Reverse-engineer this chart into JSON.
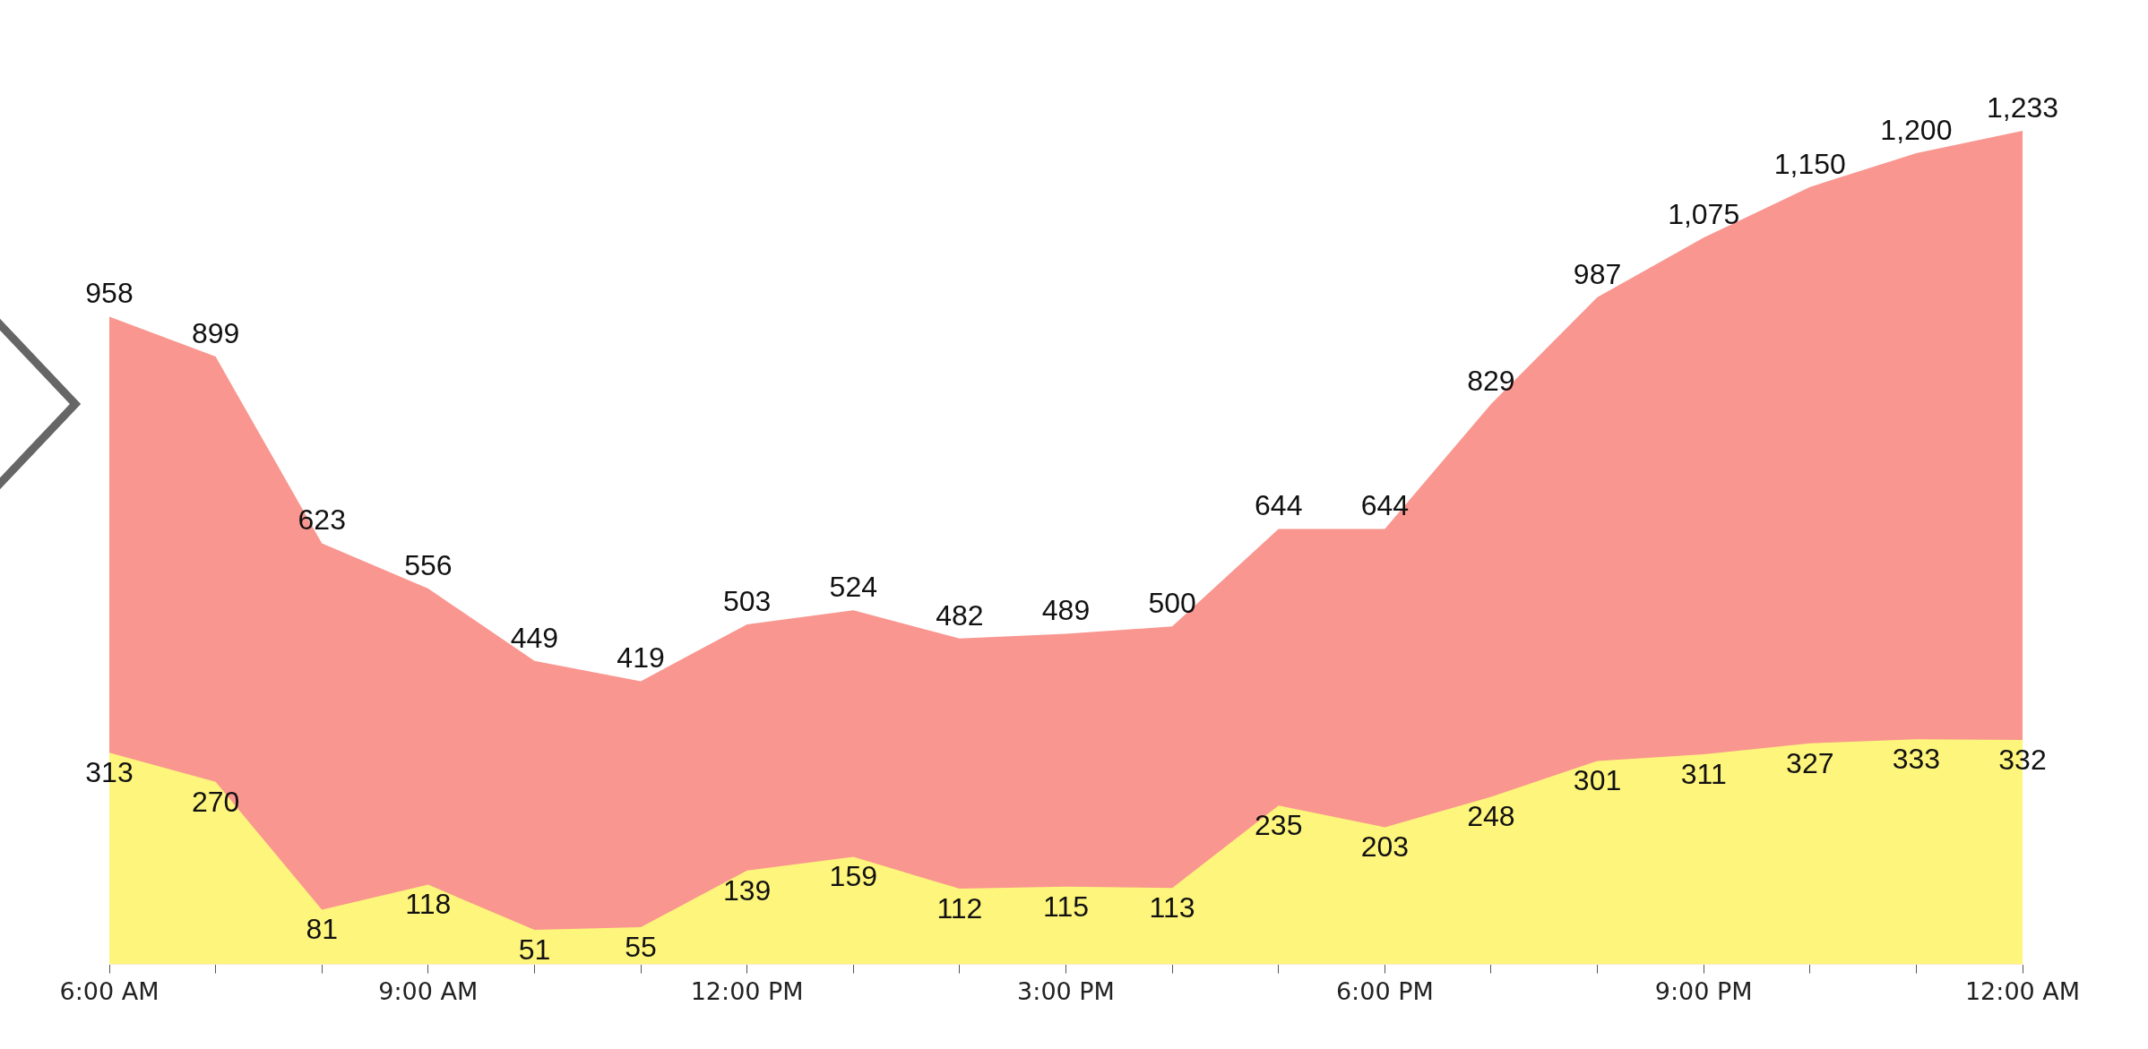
{
  "chart_data": {
    "type": "area",
    "x": [
      6,
      7,
      8,
      9,
      10,
      11,
      12,
      13,
      14,
      15,
      16,
      17,
      18,
      19,
      20,
      21,
      22,
      23,
      24
    ],
    "series": [
      {
        "color": "#fef57c",
        "values": [
          313,
          270,
          81,
          118,
          51,
          55,
          139,
          159,
          112,
          115,
          113,
          235,
          203,
          248,
          301,
          311,
          327,
          333,
          332
        ],
        "value_labels": [
          "313",
          "270",
          "81",
          "118",
          "51",
          "55",
          "139",
          "159",
          "112",
          "115",
          "113",
          "235",
          "203",
          "248",
          "301",
          "311",
          "327",
          "333",
          "332"
        ]
      },
      {
        "color": "#f9968f",
        "values": [
          958,
          899,
          623,
          556,
          449,
          419,
          503,
          524,
          482,
          489,
          500,
          644,
          644,
          829,
          987,
          1075,
          1150,
          1200,
          1233
        ],
        "value_labels": [
          "958",
          "899",
          "623",
          "556",
          "449",
          "419",
          "503",
          "524",
          "482",
          "489",
          "500",
          "644",
          "644",
          "829",
          "987",
          "1,075",
          "1,150",
          "1,200",
          "1,233"
        ]
      }
    ],
    "xlim": [
      6,
      24
    ],
    "xticks": [
      {
        "value": 6,
        "label": "6:00 AM"
      },
      {
        "value": 7,
        "label": null
      },
      {
        "value": 8,
        "label": null
      },
      {
        "value": 9,
        "label": "9:00 AM"
      },
      {
        "value": 10,
        "label": null
      },
      {
        "value": 11,
        "label": null
      },
      {
        "value": 12,
        "label": "12:00 PM"
      },
      {
        "value": 13,
        "label": null
      },
      {
        "value": 14,
        "label": null
      },
      {
        "value": 15,
        "label": "3:00 PM"
      },
      {
        "value": 16,
        "label": null
      },
      {
        "value": 17,
        "label": null
      },
      {
        "value": 18,
        "label": "6:00 PM"
      },
      {
        "value": 19,
        "label": null
      },
      {
        "value": 20,
        "label": null
      },
      {
        "value": 21,
        "label": "9:00 PM"
      },
      {
        "value": 22,
        "label": null
      },
      {
        "value": 23,
        "label": null
      },
      {
        "value": 24,
        "label": "12:00 AM"
      }
    ],
    "tick_labels": "x",
    "legend": false,
    "grid": false,
    "marker": "none"
  }
}
